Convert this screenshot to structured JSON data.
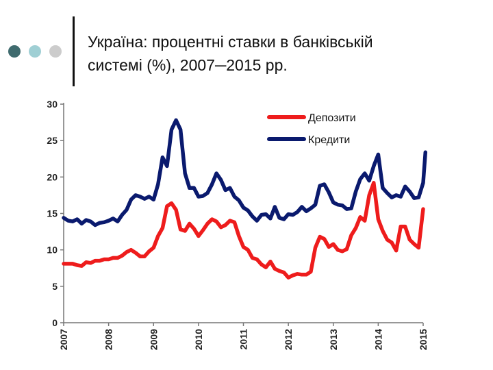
{
  "slide": {
    "title_line1": "Україна: процентні ставки в банківській",
    "title_line2": "системі (%), 2007─2015 рр.",
    "dots": [
      {
        "name": "teal-dot",
        "color": "#3f6b6e"
      },
      {
        "name": "light-blue-dot",
        "color": "#9fcfd4"
      },
      {
        "name": "grey-dot",
        "color": "#cccccc"
      }
    ]
  },
  "chart_data": {
    "type": "line",
    "title": "",
    "xlabel": "",
    "ylabel": "",
    "xlim": [
      2007,
      2015
    ],
    "ylim": [
      0,
      30
    ],
    "yticks": [
      0,
      5,
      10,
      15,
      20,
      25,
      30
    ],
    "xticks": [
      2007,
      2008,
      2009,
      2010,
      2011,
      2012,
      2013,
      2014,
      2015
    ],
    "xtick_labels": [
      "2007",
      "2008",
      "2009",
      "2010",
      "2011",
      "2012",
      "2013",
      "2014",
      "2015"
    ],
    "grid": false,
    "legend_position": "top-right",
    "series": [
      {
        "name": "Депозити",
        "color": "#ee1c1c",
        "points": [
          [
            2007.0,
            8.1
          ],
          [
            2007.1,
            8.1
          ],
          [
            2007.2,
            8.1
          ],
          [
            2007.3,
            7.9
          ],
          [
            2007.4,
            7.8
          ],
          [
            2007.5,
            8.3
          ],
          [
            2007.6,
            8.2
          ],
          [
            2007.7,
            8.5
          ],
          [
            2007.8,
            8.5
          ],
          [
            2007.9,
            8.7
          ],
          [
            2008.0,
            8.7
          ],
          [
            2008.1,
            8.9
          ],
          [
            2008.2,
            8.9
          ],
          [
            2008.3,
            9.2
          ],
          [
            2008.4,
            9.7
          ],
          [
            2008.5,
            10.0
          ],
          [
            2008.6,
            9.6
          ],
          [
            2008.7,
            9.1
          ],
          [
            2008.8,
            9.1
          ],
          [
            2008.9,
            9.8
          ],
          [
            2009.0,
            10.3
          ],
          [
            2009.1,
            11.9
          ],
          [
            2009.2,
            13.0
          ],
          [
            2009.3,
            16.0
          ],
          [
            2009.4,
            16.4
          ],
          [
            2009.5,
            15.5
          ],
          [
            2009.6,
            12.8
          ],
          [
            2009.7,
            12.6
          ],
          [
            2009.8,
            13.6
          ],
          [
            2009.9,
            12.9
          ],
          [
            2010.0,
            11.9
          ],
          [
            2010.1,
            12.7
          ],
          [
            2010.2,
            13.6
          ],
          [
            2010.3,
            14.2
          ],
          [
            2010.4,
            13.9
          ],
          [
            2010.5,
            13.1
          ],
          [
            2010.6,
            13.4
          ],
          [
            2010.7,
            14.0
          ],
          [
            2010.8,
            13.8
          ],
          [
            2010.9,
            11.9
          ],
          [
            2011.0,
            10.4
          ],
          [
            2011.1,
            10.0
          ],
          [
            2011.2,
            8.9
          ],
          [
            2011.3,
            8.7
          ],
          [
            2011.4,
            8.0
          ],
          [
            2011.5,
            7.6
          ],
          [
            2011.6,
            8.4
          ],
          [
            2011.7,
            7.4
          ],
          [
            2011.8,
            7.1
          ],
          [
            2011.9,
            6.9
          ],
          [
            2012.0,
            6.2
          ],
          [
            2012.1,
            6.5
          ],
          [
            2012.2,
            6.7
          ],
          [
            2012.3,
            6.6
          ],
          [
            2012.4,
            6.6
          ],
          [
            2012.5,
            7.0
          ],
          [
            2012.6,
            10.3
          ],
          [
            2012.7,
            11.8
          ],
          [
            2012.8,
            11.5
          ],
          [
            2012.9,
            10.4
          ],
          [
            2013.0,
            10.8
          ],
          [
            2013.1,
            10.0
          ],
          [
            2013.2,
            9.8
          ],
          [
            2013.3,
            10.1
          ],
          [
            2013.4,
            12.0
          ],
          [
            2013.5,
            13.0
          ],
          [
            2013.6,
            14.5
          ],
          [
            2013.7,
            14.0
          ],
          [
            2013.8,
            17.5
          ],
          [
            2013.9,
            19.2
          ],
          [
            2014.0,
            14.2
          ],
          [
            2014.1,
            12.6
          ],
          [
            2014.2,
            11.4
          ],
          [
            2014.3,
            11.0
          ],
          [
            2014.4,
            9.9
          ],
          [
            2014.5,
            13.2
          ],
          [
            2014.6,
            13.2
          ],
          [
            2014.7,
            11.4
          ],
          [
            2014.8,
            10.8
          ],
          [
            2014.9,
            10.3
          ],
          [
            2015.0,
            15.6
          ]
        ]
      },
      {
        "name": "Кредити",
        "color": "#0a1a6e",
        "points": [
          [
            2007.0,
            14.4
          ],
          [
            2007.1,
            14.0
          ],
          [
            2007.2,
            13.9
          ],
          [
            2007.3,
            14.2
          ],
          [
            2007.4,
            13.6
          ],
          [
            2007.5,
            14.1
          ],
          [
            2007.6,
            13.9
          ],
          [
            2007.7,
            13.4
          ],
          [
            2007.8,
            13.7
          ],
          [
            2007.9,
            13.8
          ],
          [
            2008.0,
            14.0
          ],
          [
            2008.1,
            14.3
          ],
          [
            2008.2,
            13.9
          ],
          [
            2008.3,
            14.8
          ],
          [
            2008.4,
            15.5
          ],
          [
            2008.5,
            16.9
          ],
          [
            2008.6,
            17.5
          ],
          [
            2008.7,
            17.3
          ],
          [
            2008.8,
            17.0
          ],
          [
            2008.9,
            17.3
          ],
          [
            2009.0,
            16.9
          ],
          [
            2009.1,
            19.0
          ],
          [
            2009.2,
            22.7
          ],
          [
            2009.3,
            21.5
          ],
          [
            2009.4,
            26.5
          ],
          [
            2009.5,
            27.8
          ],
          [
            2009.6,
            26.5
          ],
          [
            2009.7,
            20.5
          ],
          [
            2009.8,
            18.5
          ],
          [
            2009.9,
            18.5
          ],
          [
            2010.0,
            17.3
          ],
          [
            2010.1,
            17.4
          ],
          [
            2010.2,
            17.8
          ],
          [
            2010.3,
            19.0
          ],
          [
            2010.4,
            20.5
          ],
          [
            2010.5,
            19.6
          ],
          [
            2010.6,
            18.2
          ],
          [
            2010.7,
            18.5
          ],
          [
            2010.8,
            17.3
          ],
          [
            2010.9,
            16.8
          ],
          [
            2011.0,
            15.8
          ],
          [
            2011.1,
            15.4
          ],
          [
            2011.2,
            14.6
          ],
          [
            2011.3,
            14.0
          ],
          [
            2011.4,
            14.8
          ],
          [
            2011.5,
            14.9
          ],
          [
            2011.6,
            14.3
          ],
          [
            2011.7,
            15.9
          ],
          [
            2011.8,
            14.4
          ],
          [
            2011.9,
            14.2
          ],
          [
            2012.0,
            14.9
          ],
          [
            2012.1,
            14.8
          ],
          [
            2012.2,
            15.2
          ],
          [
            2012.3,
            15.9
          ],
          [
            2012.4,
            15.3
          ],
          [
            2012.5,
            15.7
          ],
          [
            2012.6,
            16.2
          ],
          [
            2012.7,
            18.8
          ],
          [
            2012.8,
            19.0
          ],
          [
            2012.9,
            17.9
          ],
          [
            2013.0,
            16.5
          ],
          [
            2013.1,
            16.2
          ],
          [
            2013.2,
            16.1
          ],
          [
            2013.3,
            15.6
          ],
          [
            2013.4,
            15.7
          ],
          [
            2013.5,
            18.0
          ],
          [
            2013.6,
            19.7
          ],
          [
            2013.7,
            20.5
          ],
          [
            2013.8,
            19.5
          ],
          [
            2013.9,
            21.5
          ],
          [
            2014.0,
            23.1
          ],
          [
            2014.1,
            18.5
          ],
          [
            2014.2,
            17.8
          ],
          [
            2014.3,
            17.2
          ],
          [
            2014.4,
            17.5
          ],
          [
            2014.5,
            17.3
          ],
          [
            2014.6,
            18.7
          ],
          [
            2014.7,
            18.0
          ],
          [
            2014.8,
            17.1
          ],
          [
            2014.9,
            17.2
          ],
          [
            2015.0,
            19.2
          ],
          [
            2015.05,
            23.4
          ]
        ]
      }
    ]
  }
}
